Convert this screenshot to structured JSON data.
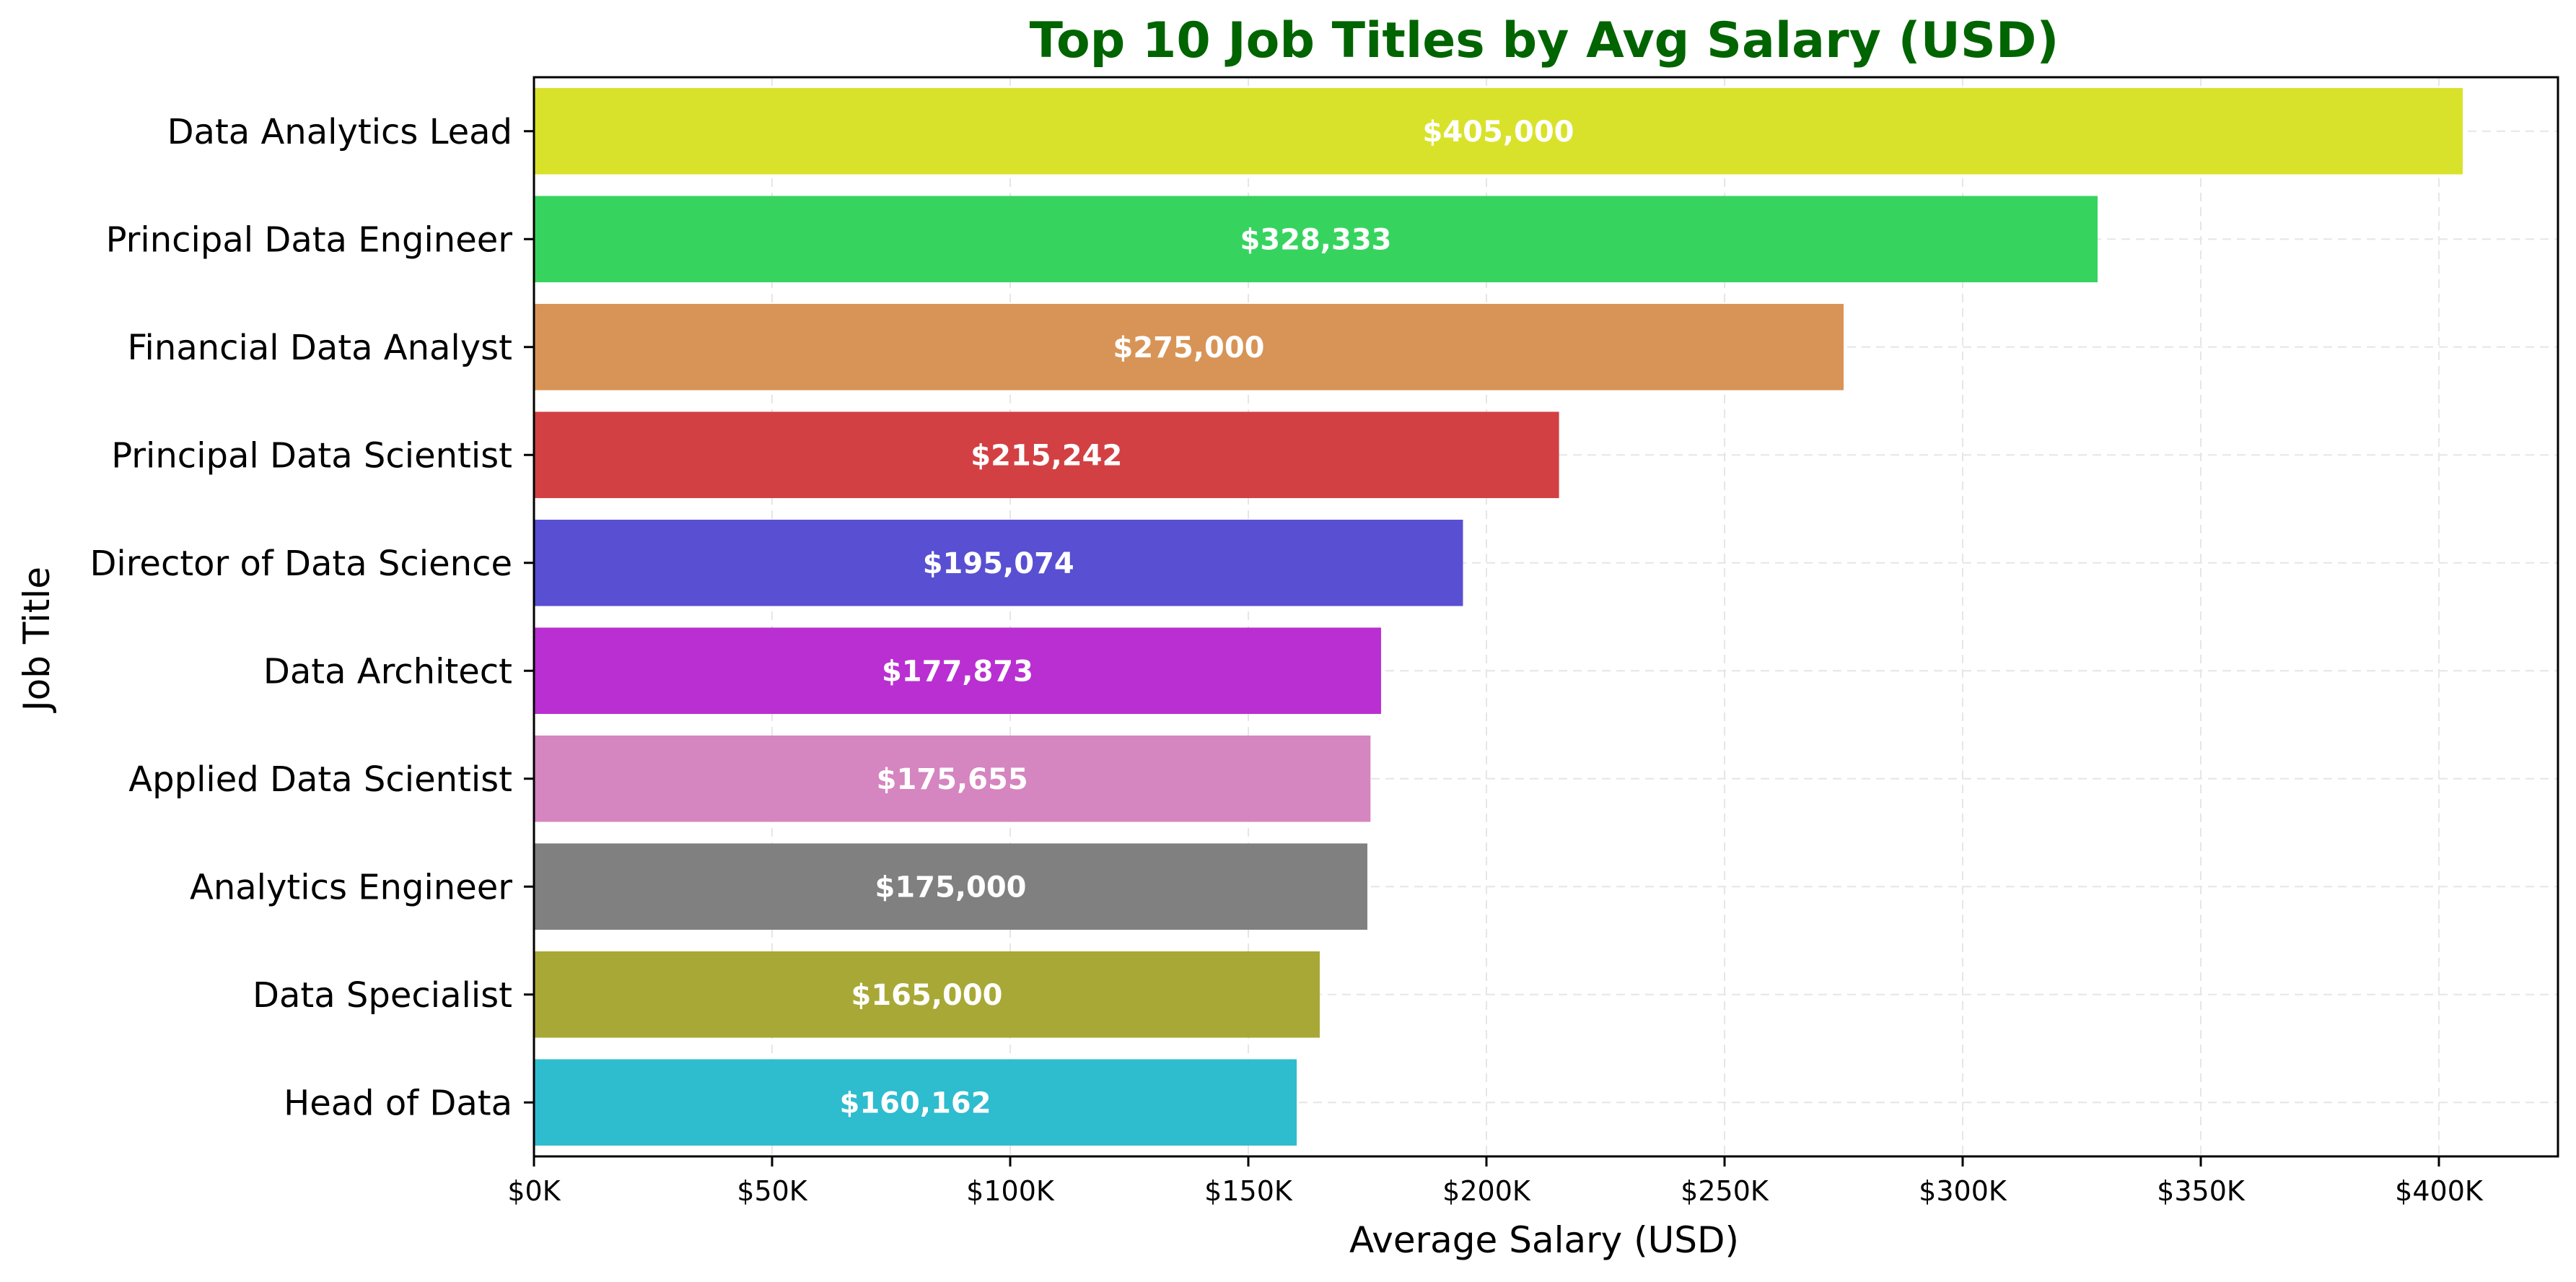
{
  "chart_data": {
    "type": "bar",
    "orientation": "horizontal",
    "title": "Top 10 Job Titles by Avg Salary (USD)",
    "xlabel": "Average Salary (USD)",
    "ylabel": "Job Title",
    "xlim": [
      0,
      425000
    ],
    "xticks": [
      {
        "value": 0,
        "label": "$0K"
      },
      {
        "value": 50000,
        "label": "$50K"
      },
      {
        "value": 100000,
        "label": "$100K"
      },
      {
        "value": 150000,
        "label": "$150K"
      },
      {
        "value": 200000,
        "label": "$200K"
      },
      {
        "value": 250000,
        "label": "$250K"
      },
      {
        "value": 300000,
        "label": "$300K"
      },
      {
        "value": 350000,
        "label": "$350K"
      },
      {
        "value": 400000,
        "label": "$400K"
      }
    ],
    "grid": true,
    "bars": [
      {
        "category": "Data Analytics Lead",
        "value": 405000,
        "label": "$405,000",
        "color": "#d9e22a"
      },
      {
        "category": "Principal Data Engineer",
        "value": 328333,
        "label": "$328,333",
        "color": "#36d45f"
      },
      {
        "category": "Financial Data Analyst",
        "value": 275000,
        "label": "$275,000",
        "color": "#d89456"
      },
      {
        "category": "Principal Data Scientist",
        "value": 215242,
        "label": "$215,242",
        "color": "#d24043"
      },
      {
        "category": "Director of Data Science",
        "value": 195074,
        "label": "$195,074",
        "color": "#584fd2"
      },
      {
        "category": "Data Architect",
        "value": 177873,
        "label": "$177,873",
        "color": "#b92fd2"
      },
      {
        "category": "Applied Data Scientist",
        "value": 175655,
        "label": "$175,655",
        "color": "#d585bf"
      },
      {
        "category": "Analytics Engineer",
        "value": 175000,
        "label": "$175,000",
        "color": "#808080"
      },
      {
        "category": "Data Specialist",
        "value": 165000,
        "label": "$165,000",
        "color": "#a8a836"
      },
      {
        "category": "Head of Data",
        "value": 160162,
        "label": "$160,162",
        "color": "#2ebccf"
      }
    ],
    "colors": {
      "title": "#006400",
      "axis": "#000000",
      "grid": "#e6e6e6",
      "bar_label": "#ffffff"
    }
  }
}
